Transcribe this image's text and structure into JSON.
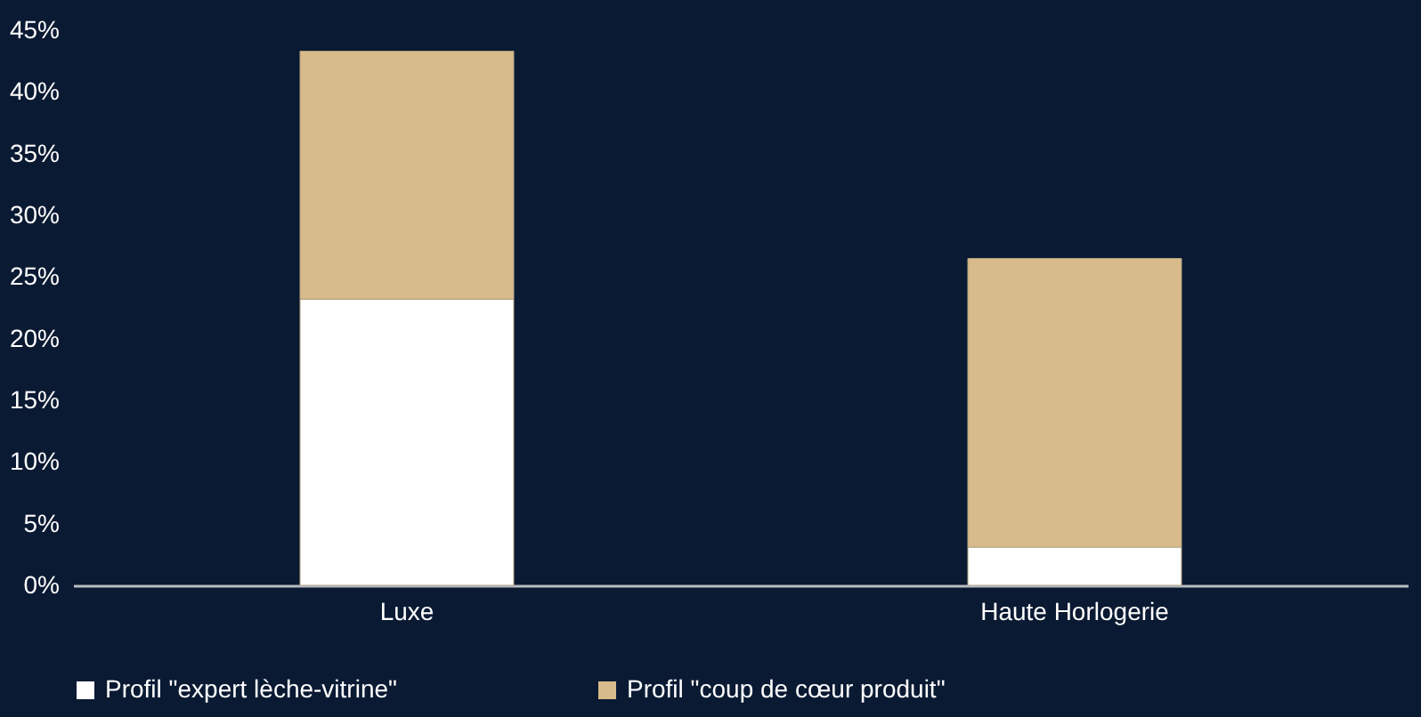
{
  "chart_data": {
    "type": "bar",
    "stacked": true,
    "categories": [
      "Luxe",
      "Haute Horlogerie"
    ],
    "series": [
      {
        "name": "Profil \"expert lèche-vitrine\"",
        "color": "#ffffff",
        "values": [
          23.2,
          3.1
        ]
      },
      {
        "name": "Profil \"coup de cœur produit\"",
        "color": "#d8bb8a",
        "values": [
          20.1,
          23.4
        ]
      }
    ],
    "ylim": [
      0,
      45
    ],
    "yticks": [
      {
        "value": 0,
        "label": "0%"
      },
      {
        "value": 5,
        "label": "5%"
      },
      {
        "value": 10,
        "label": "10%"
      },
      {
        "value": 15,
        "label": "15%"
      },
      {
        "value": 20,
        "label": "20%"
      },
      {
        "value": 25,
        "label": "25%"
      },
      {
        "value": 30,
        "label": "30%"
      },
      {
        "value": 35,
        "label": "35%"
      },
      {
        "value": 40,
        "label": "40%"
      },
      {
        "value": 45,
        "label": "45%"
      }
    ],
    "grid": false,
    "legend": "bottom"
  }
}
